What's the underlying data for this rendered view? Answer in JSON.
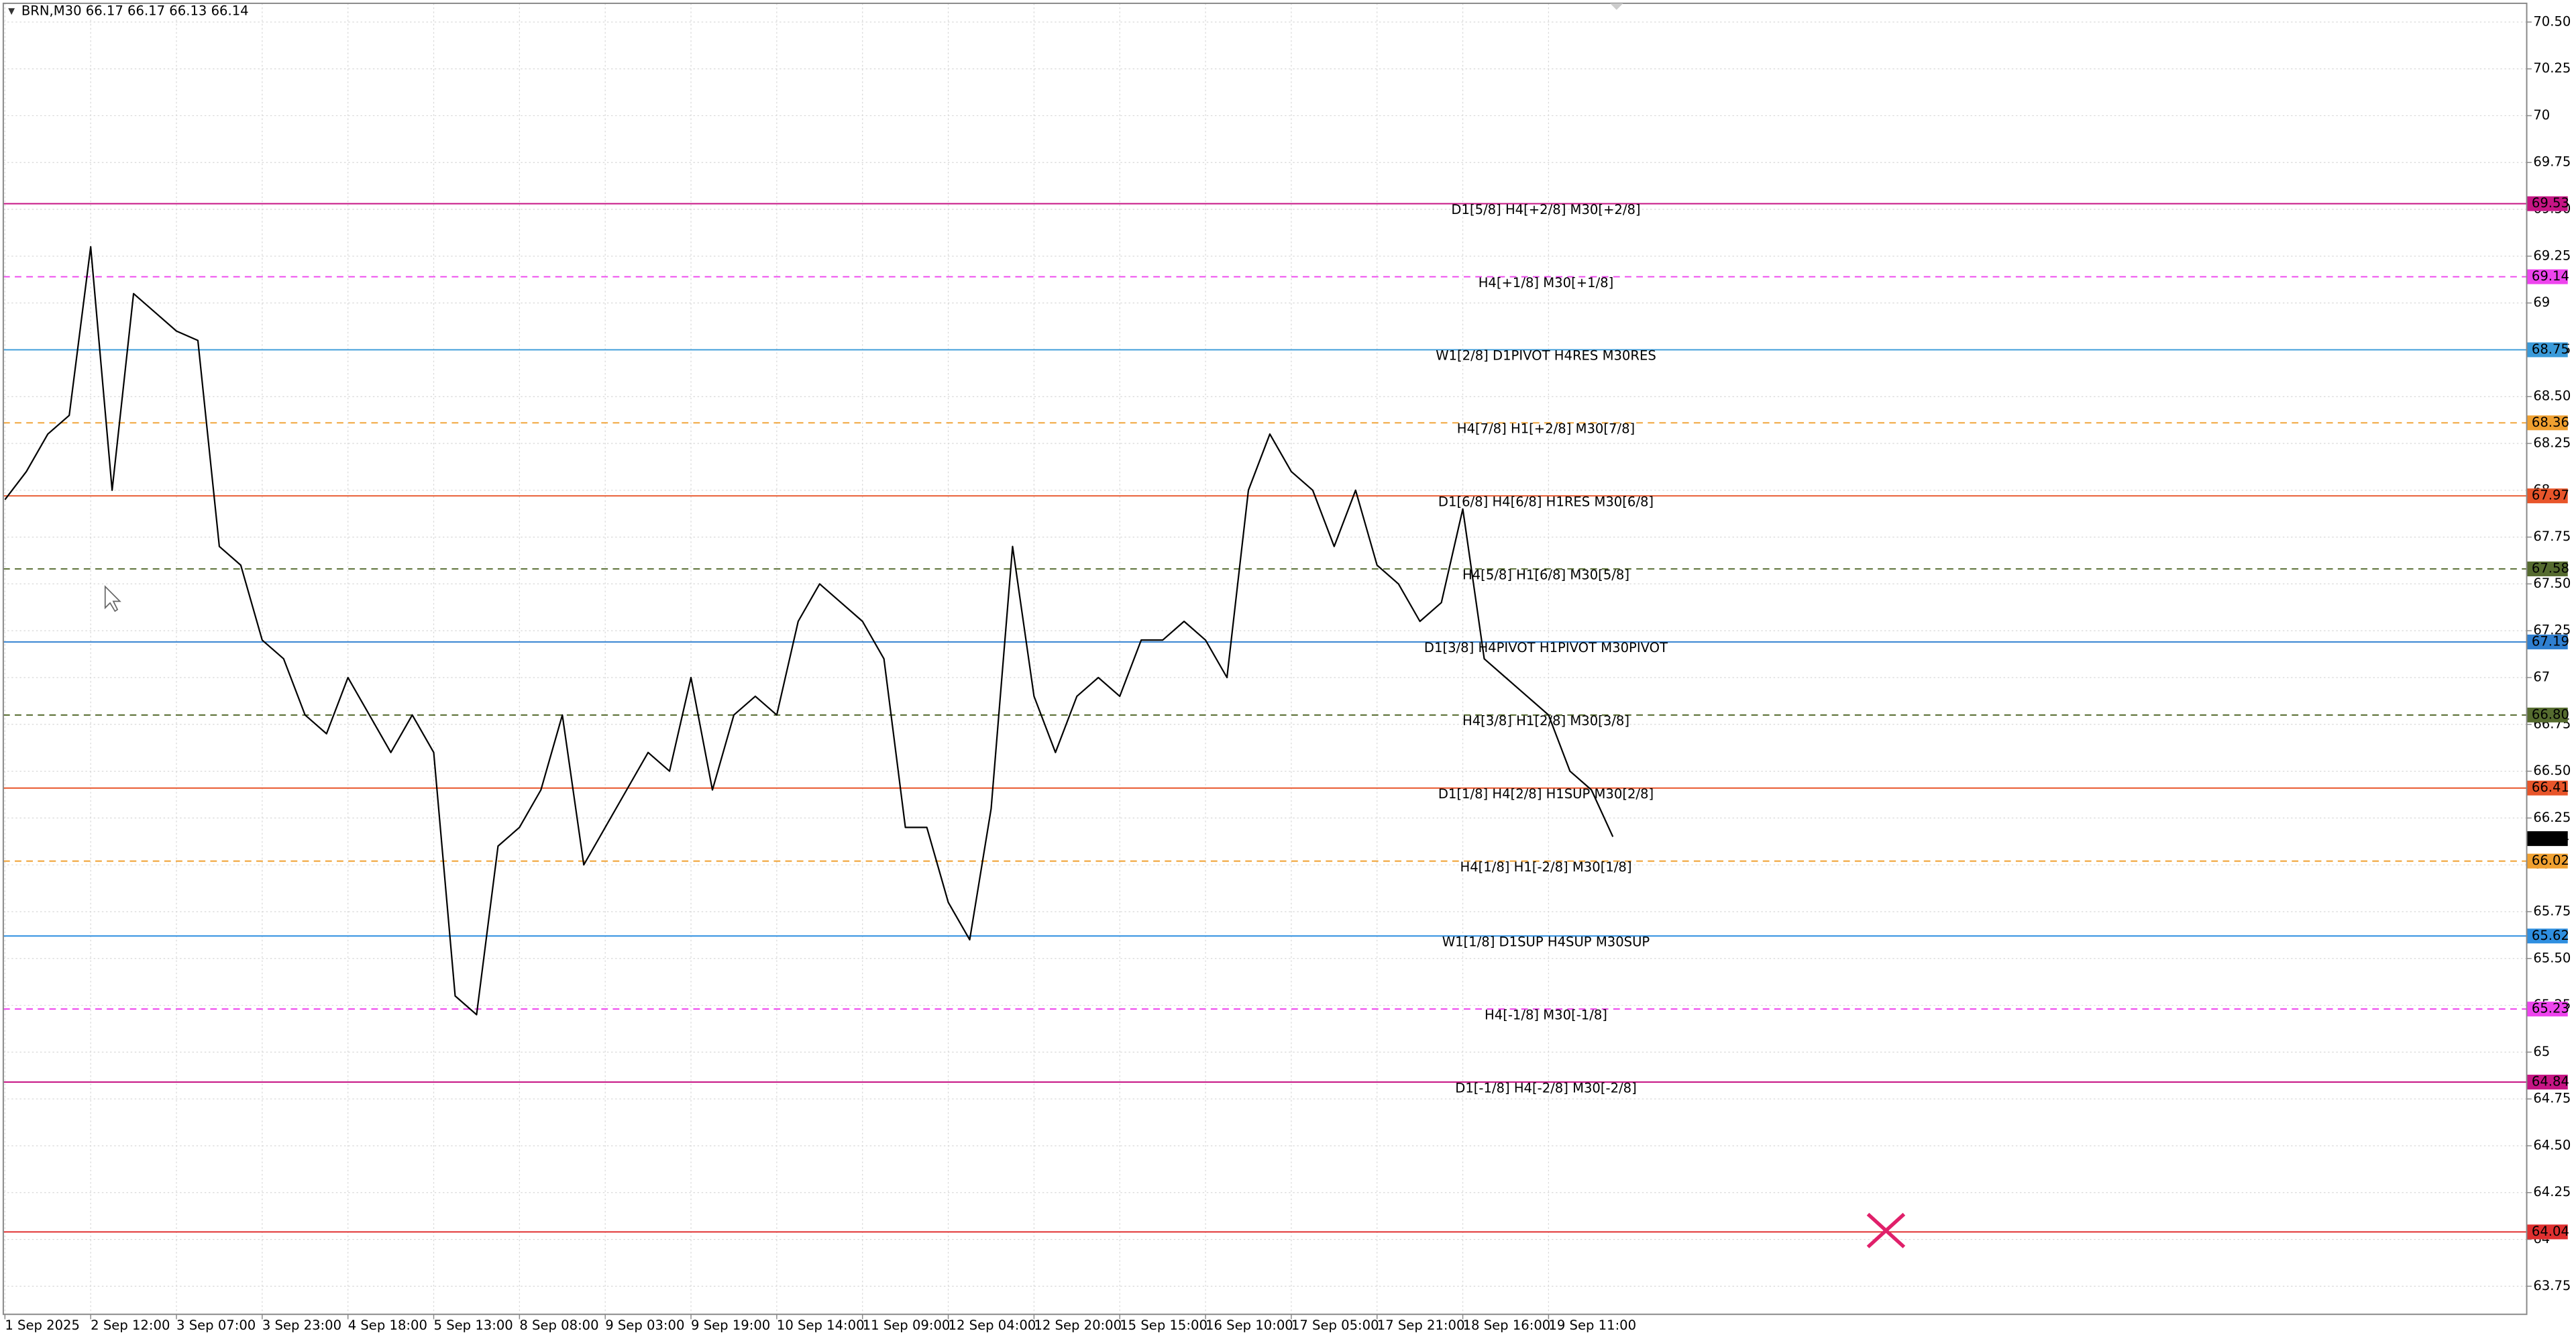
{
  "chart_data": {
    "type": "line",
    "title": "BRN,M30  66.17 66.17 66.13 66.14",
    "categories": [
      "1 Sep 2025",
      null,
      null,
      null,
      "2 Sep 12:00",
      null,
      null,
      null,
      "3 Sep 07:00",
      null,
      null,
      null,
      "3 Sep 23:00",
      null,
      null,
      null,
      "4 Sep 18:00",
      null,
      null,
      null,
      "5 Sep 13:00",
      null,
      null,
      null,
      "8 Sep 08:00",
      null,
      null,
      null,
      "9 Sep 03:00",
      null,
      null,
      null,
      "9 Sep 19:00",
      null,
      null,
      null,
      "10 Sep 14:00",
      null,
      null,
      null,
      "11 Sep 09:00",
      null,
      null,
      null,
      "12 Sep 04:00",
      null,
      null,
      null,
      "12 Sep 20:00",
      null,
      null,
      null,
      "15 Sep 15:00",
      null,
      null,
      null,
      "16 Sep 10:00",
      null,
      null,
      null,
      "17 Sep 05:00",
      null,
      null,
      null,
      "17 Sep 21:00",
      null,
      null,
      null,
      "18 Sep 16:00",
      null,
      null,
      null,
      "19 Sep 11:00",
      null,
      null,
      null
    ],
    "series": [
      {
        "name": "BRN,M30",
        "color": "#000000",
        "values": [
          67.95,
          68.1,
          68.3,
          68.4,
          69.3,
          68.0,
          69.05,
          68.95,
          68.85,
          68.8,
          67.7,
          67.6,
          67.2,
          67.1,
          66.8,
          66.7,
          67.0,
          66.8,
          66.6,
          66.8,
          66.6,
          65.3,
          65.2,
          66.1,
          66.2,
          66.4,
          66.8,
          66.0,
          66.2,
          66.4,
          66.6,
          66.5,
          67.0,
          66.4,
          66.8,
          66.9,
          66.8,
          67.3,
          67.5,
          67.4,
          67.3,
          67.1,
          66.2,
          66.2,
          65.8,
          65.6,
          66.3,
          67.7,
          66.9,
          66.6,
          66.9,
          67.0,
          66.9,
          67.2,
          67.2,
          67.3,
          67.2,
          67.0,
          68.0,
          68.3,
          68.1,
          68.0,
          67.7,
          68.0,
          67.6,
          67.5,
          67.3,
          67.4,
          67.9,
          67.1,
          67.0,
          66.9,
          66.8,
          66.5,
          66.4,
          66.15
        ]
      }
    ],
    "last_price": 66.14,
    "levels": {
      "values": [
        69.53,
        69.14,
        68.75,
        68.36,
        67.97,
        67.58,
        67.19,
        66.8,
        66.41,
        66.02,
        65.62,
        65.23,
        64.84,
        64.04
      ],
      "value_labels": [
        "69.53",
        "69.14",
        "68.75",
        "68.36",
        "67.97",
        "67.58",
        "67.19",
        "66.80",
        "66.41",
        "66.02",
        "65.62",
        "65.23",
        "64.84",
        "64.04"
      ],
      "names": [
        "D1[5/8] H4[+2/8] M30[+2/8]",
        "H4[+1/8] M30[+1/8]",
        "W1[2/8] D1PIVOT H4RES M30RES",
        "H4[7/8] H1[+2/8] M30[7/8]",
        "D1[6/8] H4[6/8] H1RES M30[6/8]",
        "H4[5/8] H1[6/8] M30[5/8]",
        "D1[3/8] H4PIVOT H1PIVOT M30PIVOT",
        "H4[3/8] H1[2/8] M30[3/8]",
        "D1[1/8] H4[2/8] H1SUP M30[2/8]",
        "H4[1/8] H1[-2/8] M30[1/8]",
        "W1[1/8] D1SUP H4SUP M30SUP",
        "H4[-1/8] M30[-1/8]",
        "D1[-1/8] H4[-2/8] M30[-2/8]",
        null
      ],
      "colors": [
        "#c71585",
        "#ee44ee",
        "#3a9ad9",
        "#f0a030",
        "#e8552a",
        "#556b2f",
        "#2f7fd0",
        "#556b2f",
        "#e8552a",
        "#f0a030",
        "#2f8fe0",
        "#ee44ee",
        "#c71585",
        "#e03030"
      ],
      "dashed": [
        false,
        true,
        false,
        true,
        false,
        true,
        false,
        true,
        false,
        true,
        false,
        true,
        false,
        false
      ]
    },
    "ylim": [
      63.6,
      70.6
    ],
    "yticks": [
      {
        "value": 63.75,
        "label": "63.75"
      },
      64,
      {
        "value": 64.25,
        "label": "64.25"
      },
      {
        "value": 64.5,
        "label": "64.50"
      },
      {
        "value": 64.75,
        "label": "64.75"
      },
      65,
      {
        "value": 65.25,
        "label": "65.25"
      },
      {
        "value": 65.5,
        "label": "65.50"
      },
      {
        "value": 65.75,
        "label": "65.75"
      },
      66,
      {
        "value": 66.25,
        "label": "66.25"
      },
      {
        "value": 66.5,
        "label": "66.50"
      },
      {
        "value": 66.75,
        "label": "66.75"
      },
      67,
      {
        "value": 67.25,
        "label": "67.25"
      },
      {
        "value": 67.5,
        "label": "67.50"
      },
      {
        "value": 67.75,
        "label": "67.75"
      },
      68,
      {
        "value": 68.25,
        "label": "68.25"
      },
      {
        "value": 68.5,
        "label": "68.50"
      },
      {
        "value": 68.75,
        "label": "68.75"
      },
      69,
      {
        "value": 69.25,
        "label": "69.25"
      },
      {
        "value": 69.5,
        "label": "69.50"
      },
      {
        "value": 69.75,
        "label": "69.75"
      },
      70,
      {
        "value": 70.25,
        "label": "70.25"
      },
      {
        "value": 70.5,
        "label": "70.50"
      }
    ],
    "grid": true
  }
}
